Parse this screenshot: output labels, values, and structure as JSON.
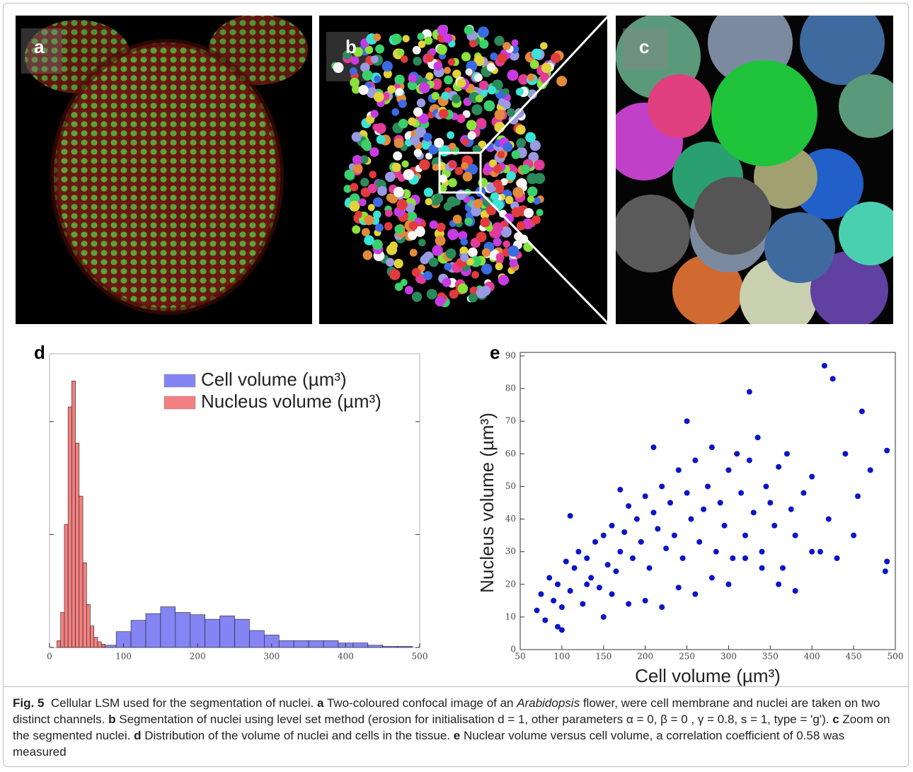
{
  "panels": [
    {
      "label": "a"
    },
    {
      "label": "b"
    },
    {
      "label": "c"
    }
  ],
  "chart_data": [
    {
      "type": "histogram",
      "panel_label": "d",
      "xlim": [
        0,
        500
      ],
      "xticks": [
        0,
        100,
        200,
        300,
        400,
        500
      ],
      "ylim": [
        0,
        260
      ],
      "yticks": [
        0,
        100,
        200
      ],
      "legend": "upper right",
      "series": [
        {
          "name": "Cell volume (µm³)",
          "color": "#6f6ff2",
          "bins": [
            70,
            90,
            110,
            130,
            150,
            170,
            190,
            210,
            230,
            250,
            270,
            290,
            310,
            330,
            350,
            370,
            390,
            410,
            430,
            450,
            470,
            490
          ],
          "values": [
            2,
            14,
            24,
            30,
            36,
            31,
            29,
            25,
            28,
            25,
            15,
            11,
            6,
            6,
            6,
            6,
            4,
            4,
            2,
            1,
            1
          ]
        },
        {
          "name": "Nucleus volume (µm³)",
          "color": "#f06a6a",
          "bins": [
            10,
            15,
            20,
            25,
            30,
            35,
            40,
            45,
            50,
            55,
            60,
            65,
            70,
            75
          ],
          "values": [
            6,
            31,
            109,
            213,
            236,
            181,
            134,
            75,
            38,
            19,
            9,
            5,
            3
          ]
        }
      ]
    },
    {
      "type": "scatter",
      "panel_label": "e",
      "x_label": "Cell volume (µm³)",
      "y_label": "Nucleus volume (µm³)",
      "xlim": [
        50,
        500
      ],
      "xticks": [
        50,
        100,
        150,
        200,
        250,
        300,
        350,
        400,
        450,
        500
      ],
      "ylim": [
        0,
        90
      ],
      "yticks": [
        0,
        10,
        20,
        30,
        40,
        50,
        60,
        70,
        80,
        90
      ],
      "color": "#0a14c8",
      "x": [
        70,
        75,
        80,
        85,
        90,
        95,
        100,
        105,
        110,
        115,
        120,
        125,
        130,
        135,
        140,
        145,
        150,
        155,
        160,
        165,
        170,
        175,
        180,
        185,
        190,
        195,
        200,
        205,
        210,
        215,
        220,
        225,
        230,
        235,
        240,
        245,
        250,
        255,
        260,
        265,
        270,
        275,
        280,
        285,
        290,
        295,
        300,
        305,
        310,
        315,
        320,
        325,
        330,
        335,
        340,
        345,
        350,
        355,
        360,
        365,
        370,
        375,
        380,
        390,
        400,
        410,
        415,
        420,
        425,
        430,
        440,
        450,
        455,
        460,
        470,
        490,
        490,
        488,
        95,
        100,
        110,
        130,
        150,
        160,
        180,
        200,
        220,
        240,
        260,
        280,
        300,
        320,
        340,
        360,
        380,
        400,
        250,
        325,
        170,
        210
      ],
      "y": [
        12,
        17,
        9,
        22,
        15,
        20,
        13,
        27,
        18,
        25,
        30,
        14,
        28,
        22,
        33,
        19,
        35,
        26,
        38,
        24,
        30,
        36,
        44,
        28,
        40,
        33,
        47,
        25,
        42,
        37,
        50,
        31,
        45,
        35,
        55,
        28,
        48,
        40,
        58,
        33,
        43,
        50,
        62,
        30,
        45,
        38,
        55,
        28,
        60,
        48,
        35,
        58,
        42,
        65,
        30,
        50,
        45,
        38,
        56,
        25,
        60,
        43,
        35,
        48,
        53,
        30,
        87,
        40,
        83,
        28,
        60,
        35,
        47,
        73,
        55,
        61,
        27,
        24,
        7,
        6,
        41,
        20,
        10,
        17,
        14,
        15,
        13,
        19,
        17,
        22,
        20,
        28,
        25,
        20,
        18,
        30,
        70,
        79,
        49,
        62
      ]
    }
  ],
  "caption": {
    "figure_label": "Fig. 5",
    "title": "Cellular LSM used for the segmentation of nuclei.",
    "items": [
      {
        "label": "a",
        "text": "Two-coloured confocal image of an",
        "emphasis": "Arabidopsis",
        "text_after": "flower, were cell membrane and nuclei are taken on two distinct channels."
      },
      {
        "label": "b",
        "text": "Segmentation of nuclei using level set method (erosion for initialisation d = 1, other parameters α = 0, β = 0 , γ = 0.8, s = 1, type = 'g')."
      },
      {
        "label": "c",
        "text": "Zoom on the segmented nuclei."
      },
      {
        "label": "d",
        "text": "Distribution of the volume of nuclei and cells in the tissue."
      },
      {
        "label": "e",
        "text": "Nuclear volume versus cell volume, a correlation coefficient of 0.58 was measured"
      }
    ]
  }
}
